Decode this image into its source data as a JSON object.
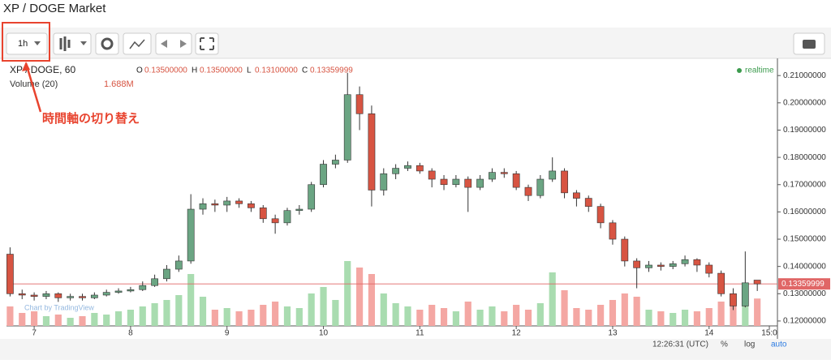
{
  "header": {
    "title": "XP / DOGE Market"
  },
  "toolbar": {
    "interval": "1h"
  },
  "annotation": {
    "text": "時間軸の切り替え"
  },
  "status_bar": {
    "time": "12:26:31 (UTC)",
    "percent": "%",
    "log": "log",
    "auto": "auto"
  },
  "chart_data": {
    "type": "candlestick",
    "title": "XP / DOGE, 60",
    "status": "realtime",
    "watermark": "Chart by TradingView",
    "ohlc_legend": [
      {
        "key": "O",
        "value": "0.13500000"
      },
      {
        "key": "H",
        "value": "0.13500000"
      },
      {
        "key": "L",
        "value": "0.13100000"
      },
      {
        "key": "C",
        "value": "0.13359999"
      }
    ],
    "volume_legend": {
      "name": "Volume (20)",
      "value": 1.688,
      "label": "1.688M"
    },
    "last_price": {
      "value": 0.13359999,
      "label": "0.13359999"
    },
    "up_color": "#6ba583",
    "down_color": "#d75442",
    "volume_up_color": "#a9dcb0",
    "volume_down_color": "#f4a7a3",
    "grid": false,
    "x": [
      6.75,
      6.875,
      7,
      7.125,
      7.25,
      7.375,
      7.5,
      7.625,
      7.75,
      7.875,
      8,
      8.125,
      8.25,
      8.375,
      8.5,
      8.625,
      8.75,
      8.875,
      9,
      9.125,
      9.25,
      9.375,
      9.5,
      9.625,
      9.75,
      9.875,
      10,
      10.125,
      10.25,
      10.375,
      10.5,
      10.625,
      10.75,
      10.875,
      11,
      11.125,
      11.25,
      11.375,
      11.5,
      11.625,
      11.75,
      11.875,
      12,
      12.125,
      12.25,
      12.375,
      12.5,
      12.625,
      12.75,
      12.875,
      13,
      13.125,
      13.25,
      13.375,
      13.5,
      13.625,
      13.75,
      13.875,
      14,
      14.125,
      14.25,
      14.375,
      14.5
    ],
    "open": [
      0.1445,
      0.13,
      0.1295,
      0.129,
      0.13,
      0.1285,
      0.129,
      0.1285,
      0.1295,
      0.1305,
      0.131,
      0.1315,
      0.133,
      0.1355,
      0.139,
      0.142,
      0.161,
      0.163,
      0.1625,
      0.164,
      0.163,
      0.1615,
      0.1575,
      0.156,
      0.1605,
      0.161,
      0.17,
      0.1775,
      0.179,
      0.203,
      0.196,
      0.168,
      0.174,
      0.176,
      0.177,
      0.175,
      0.172,
      0.17,
      0.172,
      0.169,
      0.172,
      0.1745,
      0.174,
      0.169,
      0.166,
      0.172,
      0.175,
      0.167,
      0.165,
      0.162,
      0.156,
      0.15,
      0.142,
      0.1395,
      0.1405,
      0.14,
      0.141,
      0.1425,
      0.1405,
      0.1375,
      0.13,
      0.1255,
      0.135
    ],
    "high": [
      0.147,
      0.1315,
      0.1305,
      0.131,
      0.1305,
      0.13,
      0.13,
      0.1305,
      0.1315,
      0.132,
      0.1325,
      0.1345,
      0.137,
      0.1405,
      0.144,
      0.1665,
      0.165,
      0.1645,
      0.1655,
      0.165,
      0.164,
      0.1625,
      0.159,
      0.1615,
      0.1625,
      0.171,
      0.179,
      0.181,
      0.211,
      0.206,
      0.199,
      0.176,
      0.1775,
      0.1785,
      0.178,
      0.176,
      0.1735,
      0.1735,
      0.173,
      0.1735,
      0.176,
      0.176,
      0.175,
      0.17,
      0.1735,
      0.18,
      0.176,
      0.168,
      0.166,
      0.163,
      0.157,
      0.151,
      0.143,
      0.142,
      0.1415,
      0.142,
      0.144,
      0.143,
      0.1415,
      0.1385,
      0.132,
      0.1455,
      0.135
    ],
    "low": [
      0.129,
      0.128,
      0.1275,
      0.128,
      0.127,
      0.1275,
      0.1275,
      0.128,
      0.129,
      0.13,
      0.1305,
      0.131,
      0.1325,
      0.1345,
      0.138,
      0.141,
      0.159,
      0.16,
      0.16,
      0.1615,
      0.16,
      0.156,
      0.152,
      0.155,
      0.159,
      0.16,
      0.169,
      0.176,
      0.178,
      0.19,
      0.162,
      0.166,
      0.172,
      0.175,
      0.174,
      0.169,
      0.168,
      0.169,
      0.16,
      0.168,
      0.171,
      0.1725,
      0.168,
      0.164,
      0.165,
      0.171,
      0.165,
      0.162,
      0.16,
      0.154,
      0.148,
      0.14,
      0.132,
      0.138,
      0.1385,
      0.139,
      0.14,
      0.138,
      0.136,
      0.129,
      0.124,
      0.125,
      0.131
    ],
    "close": [
      0.13,
      0.1295,
      0.129,
      0.13,
      0.1285,
      0.129,
      0.1285,
      0.1295,
      0.1305,
      0.131,
      0.1315,
      0.133,
      0.1355,
      0.139,
      0.142,
      0.161,
      0.163,
      0.1625,
      0.164,
      0.163,
      0.1615,
      0.1575,
      0.156,
      0.1605,
      0.161,
      0.17,
      0.1775,
      0.179,
      0.203,
      0.196,
      0.168,
      0.174,
      0.176,
      0.177,
      0.175,
      0.172,
      0.17,
      0.172,
      0.169,
      0.172,
      0.1745,
      0.174,
      0.169,
      0.166,
      0.172,
      0.175,
      0.167,
      0.165,
      0.162,
      0.156,
      0.15,
      0.142,
      0.1395,
      0.1405,
      0.14,
      0.141,
      0.1425,
      0.1405,
      0.1375,
      0.13,
      0.1255,
      0.134,
      0.13359999
    ],
    "volume": [
      1.2,
      0.8,
      0.9,
      0.6,
      0.7,
      0.5,
      0.6,
      0.8,
      0.7,
      0.9,
      1.0,
      1.2,
      1.4,
      1.6,
      1.9,
      3.2,
      1.8,
      1.0,
      1.1,
      0.9,
      1.0,
      1.3,
      1.5,
      1.2,
      1.1,
      2.0,
      2.4,
      1.6,
      4.0,
      3.6,
      3.2,
      2.0,
      1.4,
      1.2,
      1.0,
      1.3,
      1.1,
      0.9,
      1.5,
      1.0,
      1.2,
      0.9,
      1.3,
      1.0,
      1.4,
      3.3,
      2.2,
      1.1,
      1.0,
      1.3,
      1.6,
      2.0,
      1.8,
      1.0,
      0.9,
      0.8,
      1.0,
      0.9,
      1.1,
      1.5,
      1.8,
      1.7,
      1.688
    ],
    "xlim": [
      6.713,
      14.709
    ],
    "xticks": [
      7,
      8,
      9,
      10,
      11,
      12,
      13,
      14,
      {
        "value": 14.625,
        "label": "15:0"
      }
    ],
    "ylim": [
      0.1182,
      0.2163
    ],
    "yticks": [
      {
        "value": 0.12,
        "label": "0.12000000"
      },
      {
        "value": 0.13,
        "label": "0.13000000"
      },
      {
        "value": 0.14,
        "label": "0.14000000"
      },
      {
        "value": 0.15,
        "label": "0.15000000"
      },
      {
        "value": 0.16,
        "label": "0.16000000"
      },
      {
        "value": 0.17,
        "label": "0.17000000"
      },
      {
        "value": 0.18,
        "label": "0.18000000"
      },
      {
        "value": 0.19,
        "label": "0.19000000"
      },
      {
        "value": 0.2,
        "label": "0.20000000"
      },
      {
        "value": 0.21,
        "label": "0.21000000"
      }
    ]
  }
}
